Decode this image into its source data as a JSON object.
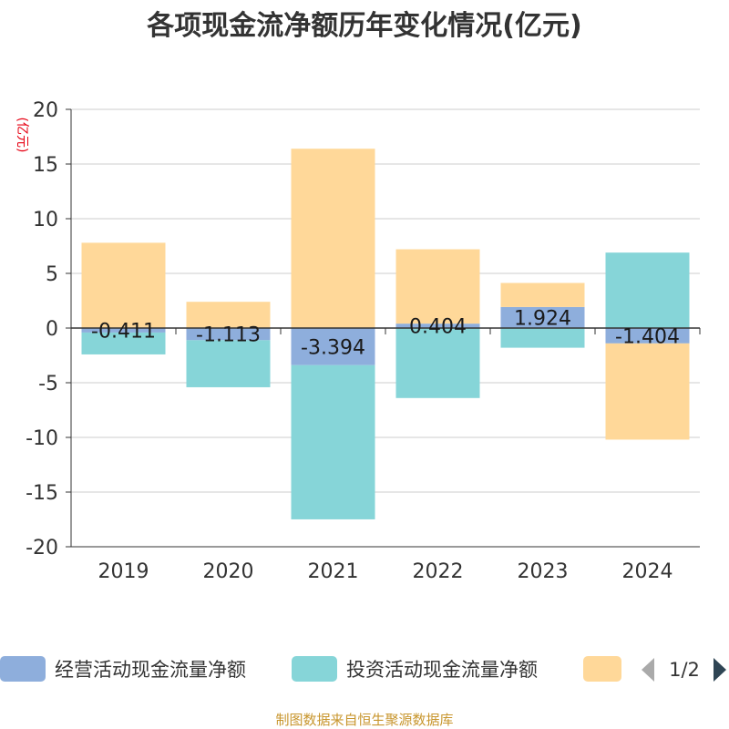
{
  "title": "各项现金流净额历年变化情况(亿元)",
  "unit": "(亿元)",
  "source": "制图数据来自恒生聚源数据库",
  "legend": {
    "page": "1/2"
  },
  "colors": {
    "operating": "#8eaedc",
    "investing": "#86d5d8",
    "financing": "#ffd899",
    "axis": "#333333",
    "grid": "#cccccc"
  },
  "chart_data": {
    "type": "bar",
    "stacked": true,
    "categories": [
      "2019",
      "2020",
      "2021",
      "2022",
      "2023",
      "2024"
    ],
    "ylim": [
      -20,
      20
    ],
    "yticks": [
      20,
      15,
      10,
      5,
      0,
      -5,
      -10,
      -15,
      -20
    ],
    "grid": true,
    "legend_position": "bottom",
    "series": [
      {
        "name": "经营活动现金流量净额",
        "color": "#8eaedc",
        "values": [
          -0.411,
          -1.113,
          -3.394,
          0.404,
          1.924,
          -1.404
        ],
        "labels": [
          "-0.411",
          "-1.113",
          "-3.394",
          "0.404",
          "1.924",
          "-1.404"
        ]
      },
      {
        "name": "投资活动现金流量净额",
        "color": "#86d5d8",
        "values": [
          -2.0,
          -4.3,
          -14.1,
          -6.4,
          -1.8,
          6.9
        ]
      },
      {
        "color": "#ffd899",
        "values": [
          7.8,
          2.4,
          16.4,
          6.8,
          2.2,
          -8.8
        ]
      }
    ]
  }
}
